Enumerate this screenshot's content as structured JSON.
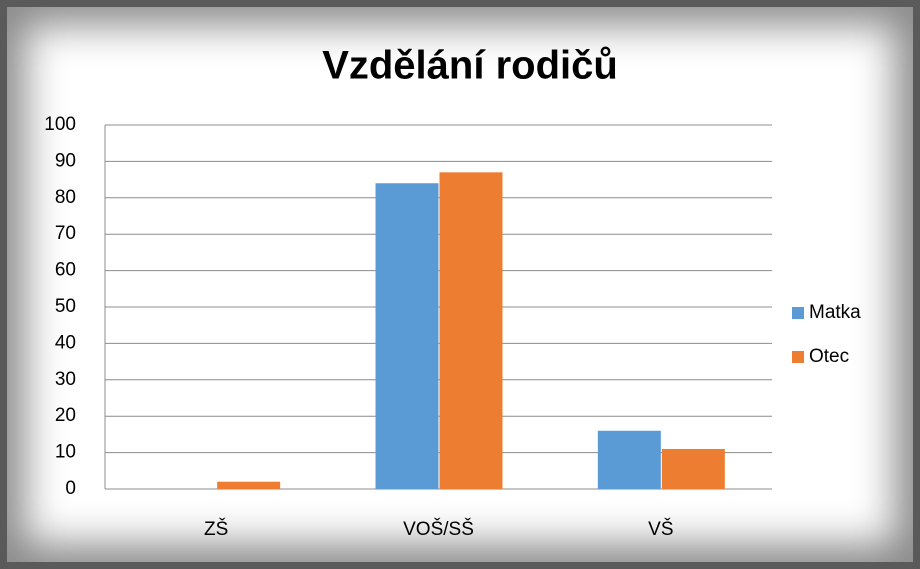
{
  "chart_data": {
    "type": "bar",
    "title": "Vzdělání rodičů",
    "categories": [
      "ZŠ",
      "VOŠ/SŠ",
      "VŠ"
    ],
    "series": [
      {
        "name": "Matka",
        "color": "#5b9bd5",
        "values": [
          0,
          84,
          16
        ]
      },
      {
        "name": "Otec",
        "color": "#ed7d31",
        "values": [
          2,
          87,
          11
        ]
      }
    ],
    "ylim": [
      0,
      100
    ],
    "yticks": [
      0,
      10,
      20,
      30,
      40,
      50,
      60,
      70,
      80,
      90,
      100
    ],
    "grid": true,
    "legend": "right"
  }
}
